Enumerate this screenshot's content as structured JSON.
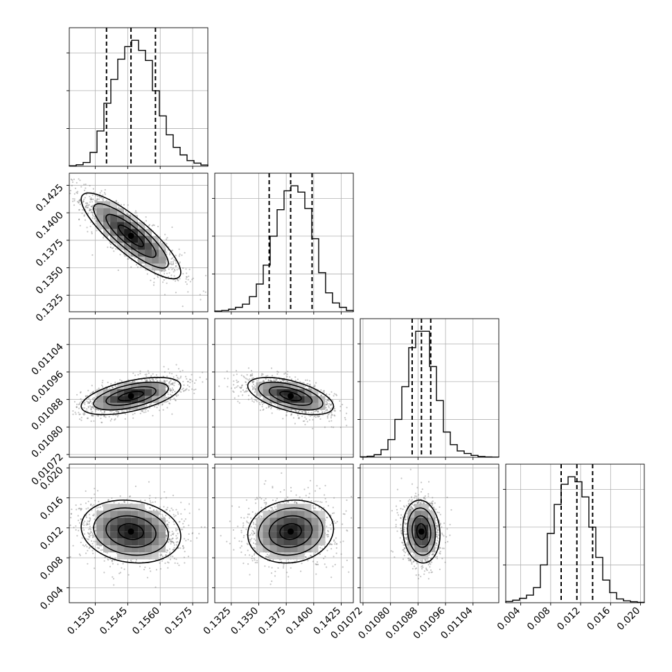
{
  "chart_data": {
    "type": "corner",
    "grid_on": true,
    "parameters": [
      {
        "mean": 0.15465,
        "sd": 0.00115,
        "range": [
          0.1518,
          0.1582
        ],
        "ticks": [
          0.153,
          0.1545,
          0.156,
          0.1575
        ],
        "tick_labels": [
          "0.1530",
          "0.1545",
          "0.1560",
          "0.1575"
        ],
        "quantiles": [
          0.15352,
          0.15465,
          0.15578
        ],
        "hist": [
          0.004,
          0.012,
          0.03,
          0.11,
          0.28,
          0.5,
          0.69,
          0.85,
          0.95,
          1.0,
          0.92,
          0.84,
          0.6,
          0.4,
          0.25,
          0.15,
          0.09,
          0.045,
          0.025,
          0.01
        ]
      },
      {
        "mean": 0.1379,
        "sd": 0.00195,
        "range": [
          0.131,
          0.1436
        ],
        "ticks": [
          0.1325,
          0.135,
          0.1375,
          0.14,
          0.1425
        ],
        "tick_labels": [
          "0.1325",
          "0.1350",
          "0.1375",
          "0.1400",
          "0.1425"
        ],
        "quantiles": [
          0.13595,
          0.1379,
          0.13985
        ],
        "hist": [
          0.005,
          0.01,
          0.02,
          0.035,
          0.06,
          0.12,
          0.22,
          0.37,
          0.6,
          0.81,
          0.96,
          1.0,
          0.95,
          0.82,
          0.58,
          0.31,
          0.15,
          0.07,
          0.035,
          0.01
        ]
      },
      {
        "mean": 0.01089,
        "sd": 2.7e-05,
        "range": [
          0.010712,
          0.011115
        ],
        "ticks": [
          0.01072,
          0.0108,
          0.01088,
          0.01096,
          0.01104
        ],
        "tick_labels": [
          "0.01072",
          "0.01080",
          "0.01088",
          "0.01096",
          "0.01104"
        ],
        "quantiles": [
          0.010863,
          0.01089,
          0.010917
        ],
        "hist": [
          0.003,
          0.008,
          0.02,
          0.06,
          0.14,
          0.3,
          0.56,
          0.87,
          1.0,
          1.0,
          0.72,
          0.45,
          0.2,
          0.1,
          0.05,
          0.03,
          0.015,
          0.006,
          0.002,
          0.001
        ]
      },
      {
        "mean": 0.0115,
        "sd": 0.0021,
        "range": [
          0.002,
          0.0205
        ],
        "ticks": [
          0.004,
          0.008,
          0.012,
          0.016,
          0.02
        ],
        "tick_labels": [
          "0.004",
          "0.008",
          "0.012",
          "0.016",
          "0.020"
        ],
        "quantiles": [
          0.0094,
          0.0115,
          0.0136
        ],
        "hist": [
          0.01,
          0.02,
          0.035,
          0.06,
          0.12,
          0.3,
          0.55,
          0.78,
          0.94,
          1.0,
          0.96,
          0.84,
          0.6,
          0.36,
          0.18,
          0.08,
          0.03,
          0.015,
          0.008,
          0.003
        ]
      }
    ],
    "correlations": [
      [
        1,
        -0.85,
        0.55,
        -0.15
      ],
      [
        -0.85,
        1,
        -0.55,
        0.1
      ],
      [
        0.55,
        -0.55,
        1,
        -0.1
      ],
      [
        -0.15,
        0.1,
        -0.1,
        1
      ]
    ]
  }
}
